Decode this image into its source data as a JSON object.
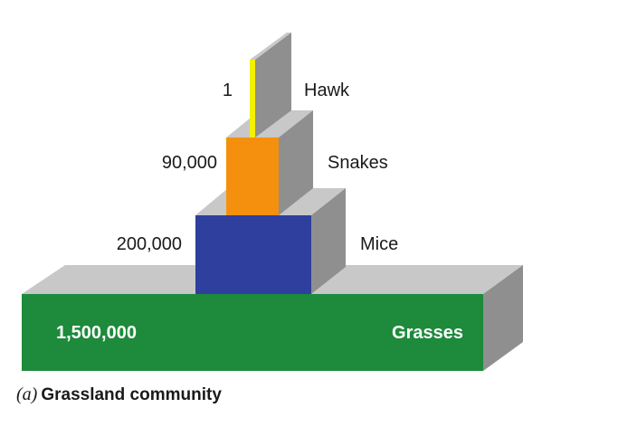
{
  "pyramid": {
    "levels": [
      {
        "organism": "Grasses",
        "count": "1,500,000",
        "color": "#1e8a3c"
      },
      {
        "organism": "Mice",
        "count": "200,000",
        "color": "#2e3f9e"
      },
      {
        "organism": "Snakes",
        "count": "90,000",
        "color": "#f5900f"
      },
      {
        "organism": "Hawk",
        "count": "1",
        "color": "#f4f000"
      }
    ]
  },
  "caption": {
    "letter": "(a)",
    "text": "Grassland community"
  }
}
